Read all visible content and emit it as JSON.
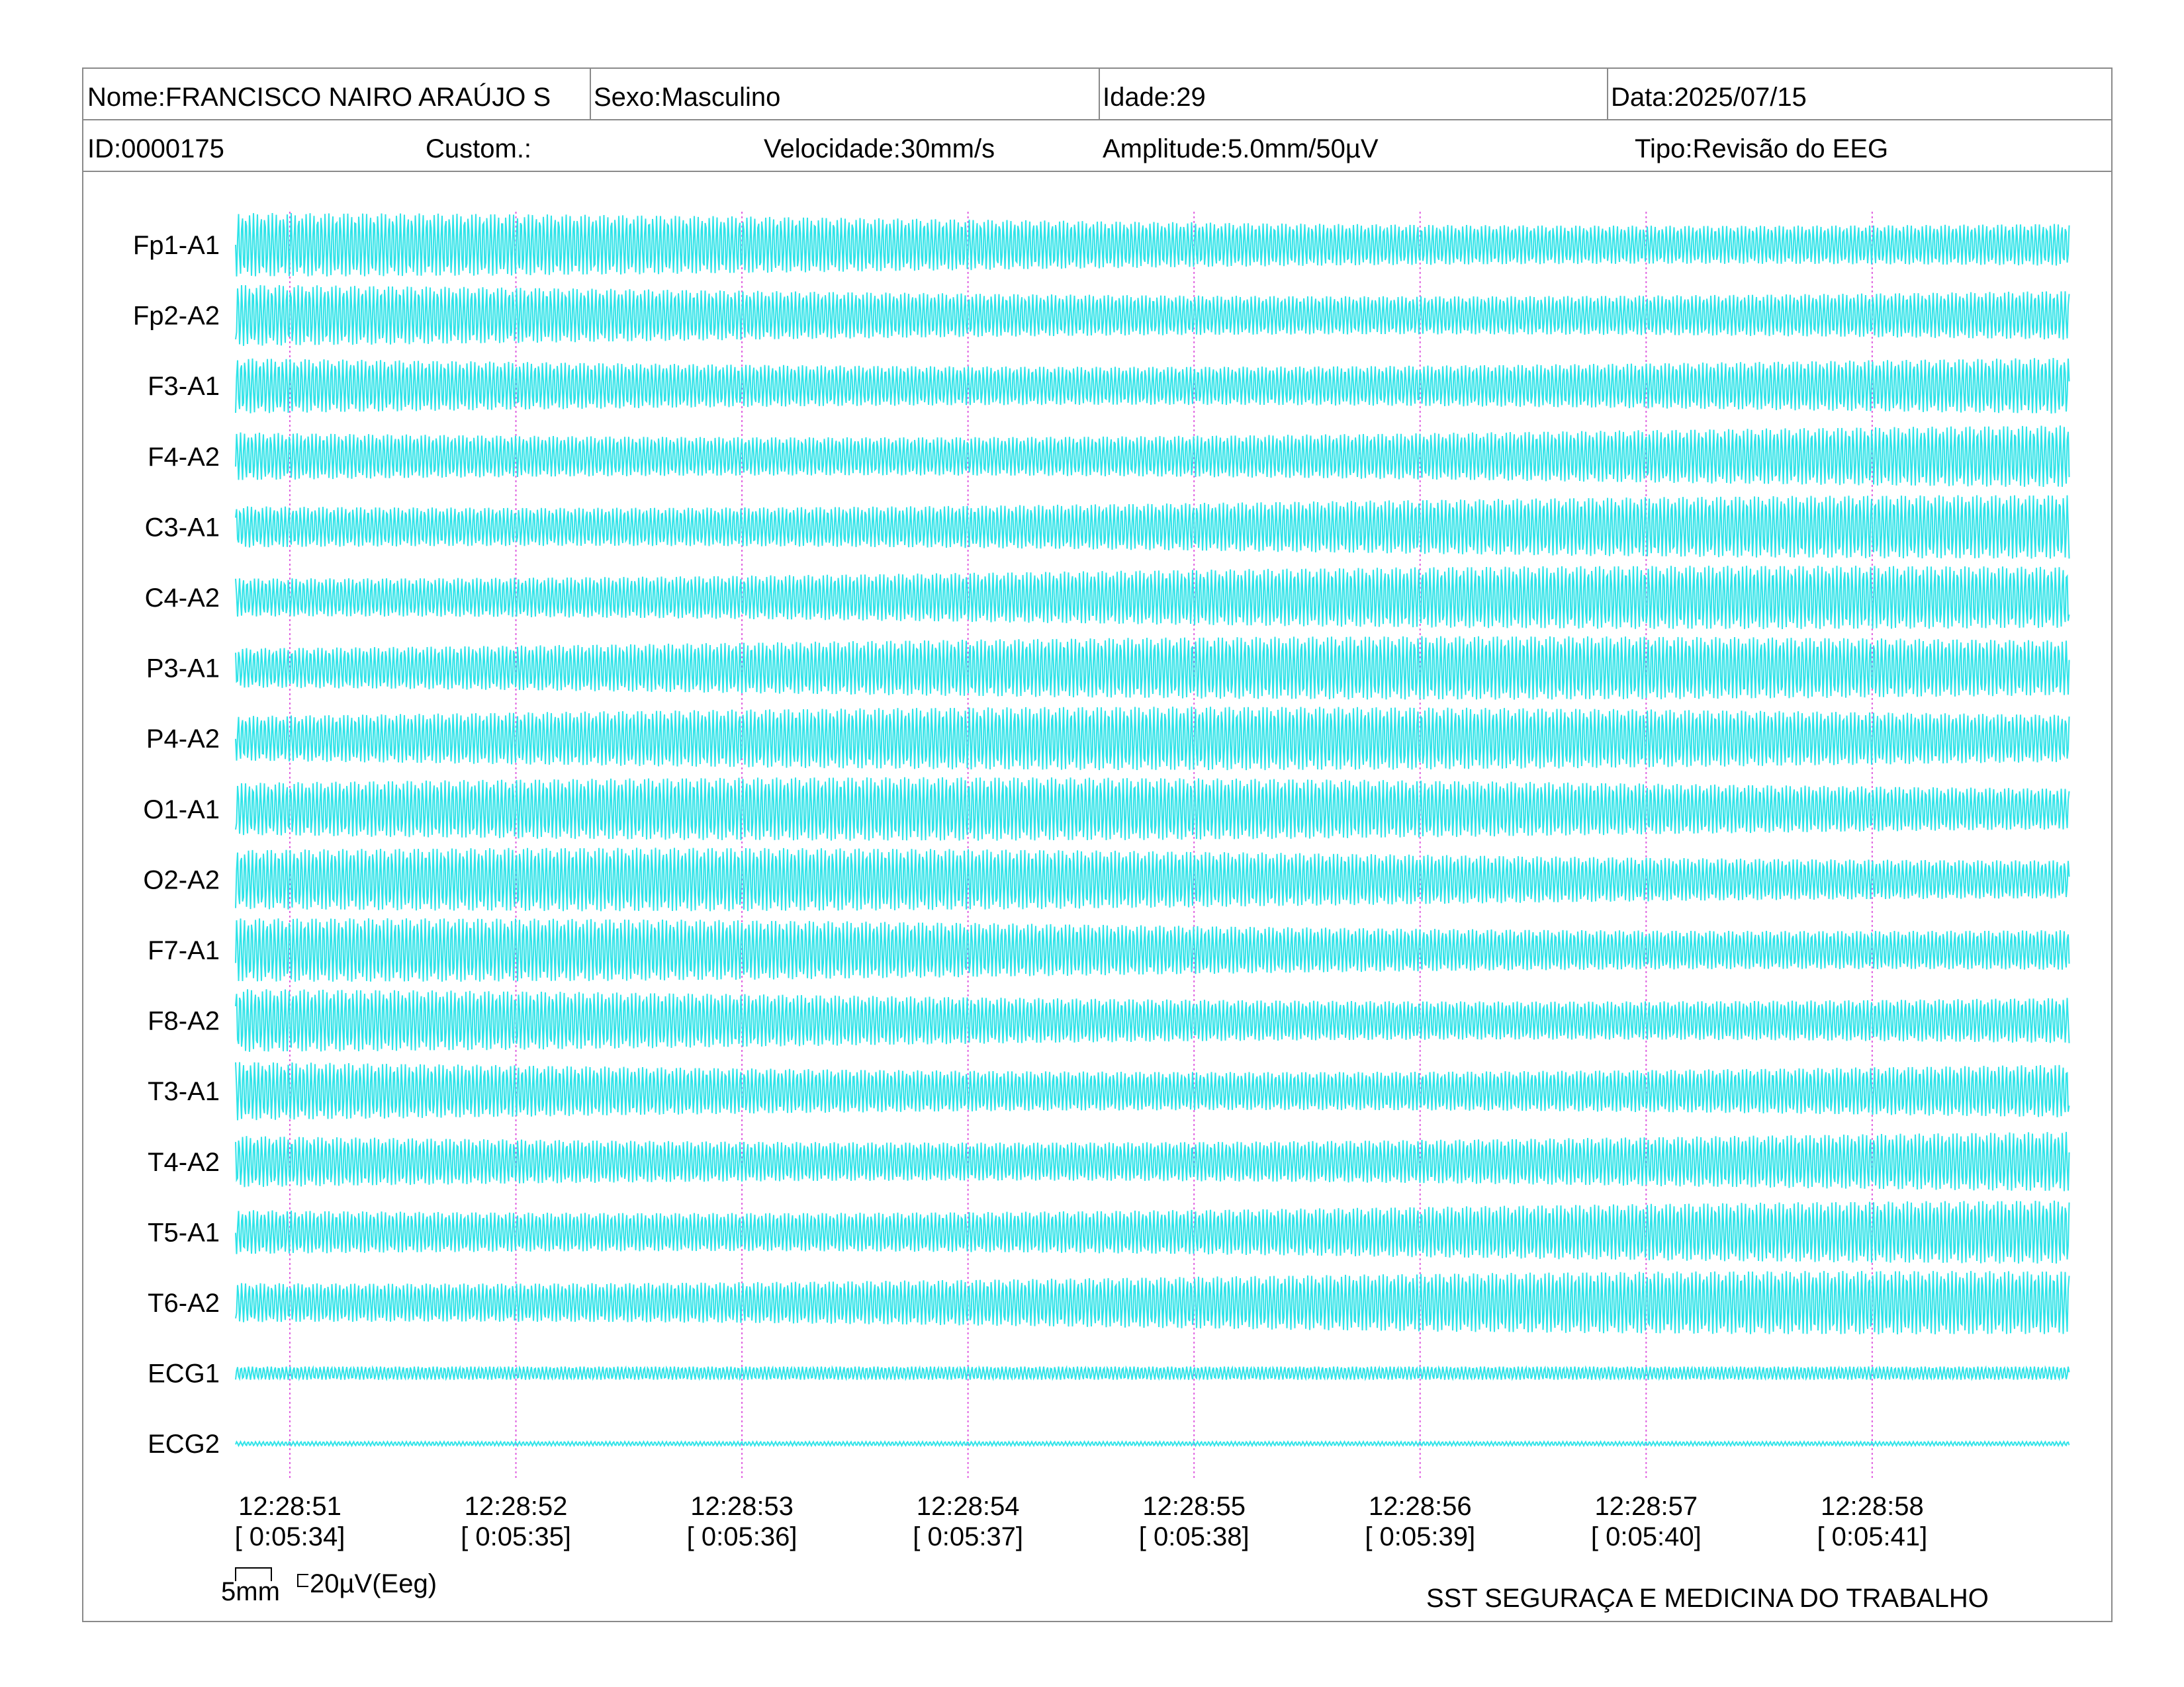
{
  "header": {
    "nome_label": "Nome:",
    "nome_value": "FRANCISCO NAIRO ARAÚJO S",
    "sexo_label": "Sexo:",
    "sexo_value": "Masculino",
    "idade_label": "Idade:",
    "idade_value": "29",
    "data_label": "Data:",
    "data_value": "2025/07/15",
    "id_label": "ID:",
    "id_value": "0000175",
    "custom_label": "Custom.:",
    "custom_value": "",
    "velocidade_label": "Velocidade:",
    "velocidade_value": "30mm/s",
    "amplitude_label": "Amplitude:",
    "amplitude_value": "5.0mm/50µV",
    "tipo_label": "Tipo:",
    "tipo_value": "Revisão do EEG"
  },
  "footer": {
    "scale_time": "5mm",
    "scale_amp": "20µV(Eeg)",
    "organization": "SST SEGURAÇA E MEDICINA DO TRABALHO"
  },
  "colors": {
    "trace": "#2fe3e8",
    "marker": "#e060e0",
    "border": "#8a8a8a"
  },
  "chart_data": {
    "type": "line",
    "title": "",
    "xlabel": "",
    "ylabel": "",
    "grid": false,
    "channels": [
      "Fp1-A1",
      "Fp2-A2",
      "F3-A1",
      "F4-A2",
      "C3-A1",
      "C4-A2",
      "P3-A1",
      "P4-A2",
      "O1-A1",
      "O2-A2",
      "F7-A1",
      "F8-A2",
      "T3-A1",
      "T4-A2",
      "T5-A1",
      "T6-A2",
      "ECG1",
      "ECG2"
    ],
    "time_ticks": [
      {
        "clock": "12:28:51",
        "elapsed": "[ 0:05:34]"
      },
      {
        "clock": "12:28:52",
        "elapsed": "[ 0:05:35]"
      },
      {
        "clock": "12:28:53",
        "elapsed": "[ 0:05:36]"
      },
      {
        "clock": "12:28:54",
        "elapsed": "[ 0:05:37]"
      },
      {
        "clock": "12:28:55",
        "elapsed": "[ 0:05:38]"
      },
      {
        "clock": "12:28:56",
        "elapsed": "[ 0:05:39]"
      },
      {
        "clock": "12:28:57",
        "elapsed": "[ 0:05:40]"
      },
      {
        "clock": "12:28:58",
        "elapsed": "[ 0:05:41]"
      }
    ],
    "x_range_seconds": [
      -0.24,
      7.87
    ],
    "eeg_frequency_hz": 60,
    "ecg1_frequency_hz": 60,
    "ecg2_frequency_hz": 60
  }
}
